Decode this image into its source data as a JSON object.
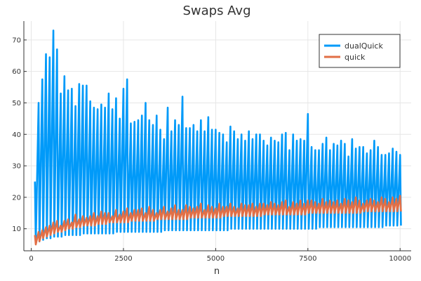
{
  "chart_data": {
    "type": "line",
    "title": "Swaps Avg",
    "xlabel": "n",
    "ylabel": "",
    "xlim": [
      -200,
      10300
    ],
    "ylim": [
      3,
      76
    ],
    "xticks": [
      0,
      2500,
      5000,
      7500,
      10000
    ],
    "yticks": [
      10,
      20,
      30,
      40,
      50,
      60,
      70
    ],
    "grid": true,
    "legend_position": "top-right",
    "series": [
      {
        "name": "dualQuick",
        "color": "#009af9",
        "x": [
          100,
          200,
          300,
          400,
          500,
          600,
          700,
          800,
          900,
          1000,
          1100,
          1200,
          1300,
          1400,
          1500,
          1600,
          1700,
          1800,
          1900,
          2000,
          2100,
          2200,
          2300,
          2400,
          2500,
          2600,
          2700,
          2800,
          2900,
          3000,
          3100,
          3200,
          3300,
          3400,
          3500,
          3600,
          3700,
          3800,
          3900,
          4000,
          4100,
          4200,
          4300,
          4400,
          4500,
          4600,
          4700,
          4800,
          4900,
          5000,
          5100,
          5200,
          5300,
          5400,
          5500,
          5600,
          5700,
          5800,
          5900,
          6000,
          6100,
          6200,
          6300,
          6400,
          6500,
          6600,
          6700,
          6800,
          6900,
          7000,
          7100,
          7200,
          7300,
          7400,
          7500,
          7600,
          7700,
          7800,
          7900,
          8000,
          8100,
          8200,
          8300,
          8400,
          8500,
          8600,
          8700,
          8800,
          8900,
          9000,
          9100,
          9200,
          9300,
          9400,
          9500,
          9600,
          9700,
          9800,
          9900,
          10000
        ],
        "high": [
          25,
          50,
          57.5,
          65.5,
          64.5,
          73,
          67,
          53,
          58.5,
          54,
          54.5,
          49,
          56,
          55.5,
          55.5,
          50.5,
          48.5,
          48,
          49.5,
          48.5,
          53,
          48,
          51.5,
          45,
          54.5,
          57.5,
          43.5,
          44,
          44.5,
          46,
          50,
          44.5,
          43,
          46,
          41.5,
          38.5,
          48.5,
          41,
          44.5,
          43,
          52,
          42,
          42,
          43,
          41,
          44.5,
          41,
          45.5,
          41.5,
          41.5,
          40.5,
          40,
          37.5,
          42.5,
          41,
          38.5,
          40,
          38,
          41,
          38.5,
          40,
          40,
          38,
          36.5,
          39,
          38,
          37.5,
          40,
          40.5,
          35,
          40,
          38,
          38.5,
          38,
          46.5,
          36,
          35,
          35,
          37,
          39,
          35,
          37,
          36.5,
          38,
          37,
          33,
          38.5,
          35.5,
          36,
          36,
          34,
          35,
          38,
          36,
          33.5,
          33.5,
          34,
          35.5,
          34.5,
          33.5
        ],
        "low": [
          5.5,
          6,
          6.5,
          7,
          7,
          7.5,
          7.5,
          7.5,
          8,
          8,
          8,
          8,
          8,
          8.5,
          8.5,
          8.5,
          8.5,
          8.5,
          8.5,
          8.5,
          8.5,
          8.5,
          9,
          9,
          9,
          9,
          9,
          9,
          9,
          9,
          9,
          9,
          9,
          9,
          9,
          9.5,
          9.5,
          9.5,
          9.5,
          9.5,
          9.5,
          9.5,
          9.5,
          9.5,
          9.5,
          9.5,
          9.5,
          9.5,
          9.5,
          9.5,
          9.5,
          9.5,
          9.5,
          10,
          10,
          10,
          10,
          10,
          10,
          10,
          10,
          10,
          10,
          10,
          10,
          10,
          10,
          10,
          10,
          10,
          10,
          10,
          10,
          10,
          10,
          10,
          10,
          10.5,
          10.5,
          10.5,
          10.5,
          10.5,
          10.5,
          10.5,
          10.5,
          10.5,
          10.5,
          10.5,
          10.5,
          10.5,
          10.5,
          10.5,
          10.5,
          10.5,
          10.5,
          11,
          11,
          11,
          11,
          11
        ]
      },
      {
        "name": "quick",
        "color": "#e26f46",
        "x": [
          100,
          200,
          300,
          400,
          500,
          600,
          700,
          800,
          900,
          1000,
          1100,
          1200,
          1300,
          1400,
          1500,
          1600,
          1700,
          1800,
          1900,
          2000,
          2100,
          2200,
          2300,
          2400,
          2500,
          2600,
          2700,
          2800,
          2900,
          3000,
          3100,
          3200,
          3300,
          3400,
          3500,
          3600,
          3700,
          3800,
          3900,
          4000,
          4100,
          4200,
          4300,
          4400,
          4500,
          4600,
          4700,
          4800,
          4900,
          5000,
          5100,
          5200,
          5300,
          5400,
          5500,
          5600,
          5700,
          5800,
          5900,
          6000,
          6100,
          6200,
          6300,
          6400,
          6500,
          6600,
          6700,
          6800,
          6900,
          7000,
          7100,
          7200,
          7300,
          7400,
          7500,
          7600,
          7700,
          7800,
          7900,
          8000,
          8100,
          8200,
          8300,
          8400,
          8500,
          8600,
          8700,
          8800,
          8900,
          9000,
          9100,
          9200,
          9300,
          9400,
          9500,
          9600,
          9700,
          9800,
          9900,
          10000
        ],
        "high": [
          8,
          9,
          9.5,
          10.5,
          11,
          12,
          12.5,
          11,
          12.5,
          13,
          12,
          14.5,
          13,
          14,
          13.5,
          14,
          15,
          14,
          15.5,
          15,
          15,
          14,
          16,
          14.5,
          15.5,
          16.5,
          15,
          16,
          16,
          16.5,
          15,
          17,
          16,
          15,
          16,
          17,
          15.5,
          16.5,
          17.5,
          16,
          16,
          17.5,
          17,
          16.5,
          17,
          18,
          16,
          17.5,
          17,
          16.5,
          18,
          17,
          17,
          18,
          17,
          16.5,
          18,
          17.5,
          17.5,
          18,
          17,
          18,
          18,
          17.5,
          18.5,
          18,
          17.5,
          18.5,
          19,
          17,
          18.5,
          18,
          19,
          18,
          19,
          19,
          18.5,
          18,
          19.5,
          18.5,
          19,
          18.5,
          19,
          18,
          19.5,
          19,
          18.5,
          20,
          19,
          18,
          19,
          19.5,
          19,
          18.5,
          20,
          19.5,
          18.5,
          20,
          19.5,
          20.5
        ],
        "low": [
          5,
          6,
          7,
          7.5,
          8,
          8.5,
          9,
          9,
          9.5,
          10,
          10,
          10.5,
          10.5,
          11,
          11,
          11,
          11,
          11.5,
          11.5,
          11.5,
          12,
          12,
          12,
          12,
          12,
          12,
          12.5,
          12.5,
          12.5,
          12.5,
          12.5,
          12.5,
          12.5,
          13,
          13,
          13,
          13,
          13,
          13,
          13,
          13,
          13,
          13.5,
          13.5,
          13.5,
          13.5,
          13.5,
          13.5,
          13.5,
          13.5,
          13.5,
          14,
          14,
          14,
          14,
          14,
          14,
          14,
          14,
          14,
          14,
          14,
          14.5,
          14.5,
          14.5,
          14.5,
          14.5,
          14.5,
          14.5,
          14.5,
          14.5,
          14.5,
          14.5,
          14.5,
          15,
          15,
          15,
          15,
          15,
          15,
          15,
          15,
          15,
          15,
          15,
          15,
          15,
          15,
          15,
          15.5,
          15.5,
          15.5,
          15.5,
          15.5,
          15.5,
          15.5,
          15.5,
          15.5,
          15.5,
          15.5
        ]
      }
    ]
  }
}
